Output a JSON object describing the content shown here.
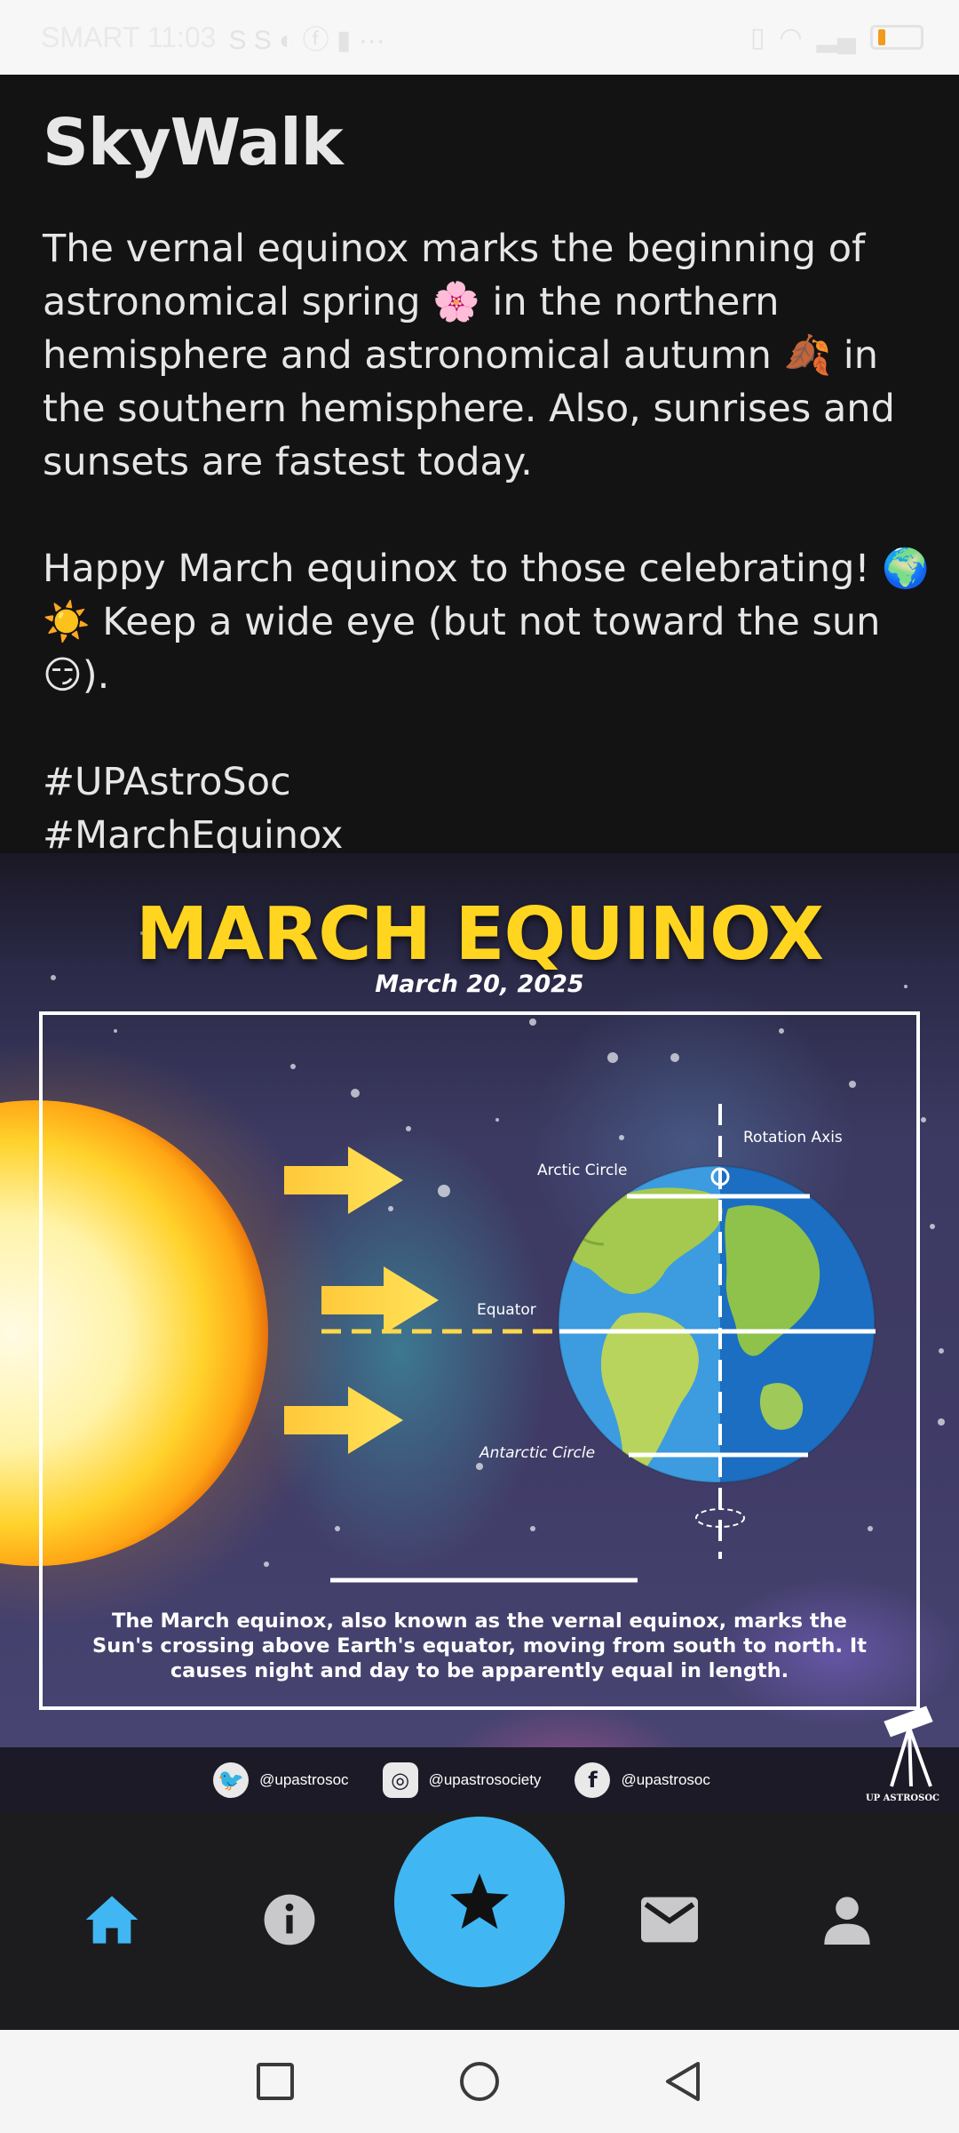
{
  "status_bar": {
    "carrier_time": "SMART 11:03",
    "battery_level": "8",
    "battery_color": "#f29b1b"
  },
  "app": {
    "title": "SkyWalk"
  },
  "post": {
    "paragraph1": "The vernal equinox marks the beginning of astronomical spring 🌸 in the northern hemisphere and astronomical autumn 🍂 in the southern hemisphere. Also, sunrises and sunsets are fastest today.",
    "paragraph2": "Happy March equinox to those celebrating! 🌍 ☀️ Keep a wide eye (but not toward the sun 😏).",
    "hashtags": [
      "#UPAstroSoc",
      "#MarchEquinox"
    ]
  },
  "poster": {
    "title": "MARCH EQUINOX",
    "date": "March 20, 2025",
    "labels": {
      "rotation_axis": "Rotation Axis",
      "arctic_circle": "Arctic Circle",
      "equator": "Equator",
      "antarctic_circle": "Antarctic Circle"
    },
    "caption": "The March equinox, also known as the vernal equinox, marks the Sun's crossing above Earth's equator, moving from south to north. It causes night and day to be apparently equal in length.",
    "socials": [
      {
        "icon": "twitter-icon",
        "handle": "@upastrosoc"
      },
      {
        "icon": "instagram-icon",
        "handle": "@upastrosociety"
      },
      {
        "icon": "facebook-icon",
        "handle": "@upastrosoc"
      }
    ],
    "logo_text": "UP ASTROSOC",
    "title_color": "#ffd51f"
  },
  "bottom_nav": {
    "items": [
      {
        "name": "home",
        "icon": "home-icon",
        "active": true
      },
      {
        "name": "info",
        "icon": "info-icon",
        "active": false
      },
      {
        "name": "featured",
        "icon": "star-icon",
        "active": false
      },
      {
        "name": "messages",
        "icon": "mail-icon",
        "active": false
      },
      {
        "name": "profile",
        "icon": "person-icon",
        "active": false
      }
    ],
    "accent": "#40b7f3"
  }
}
